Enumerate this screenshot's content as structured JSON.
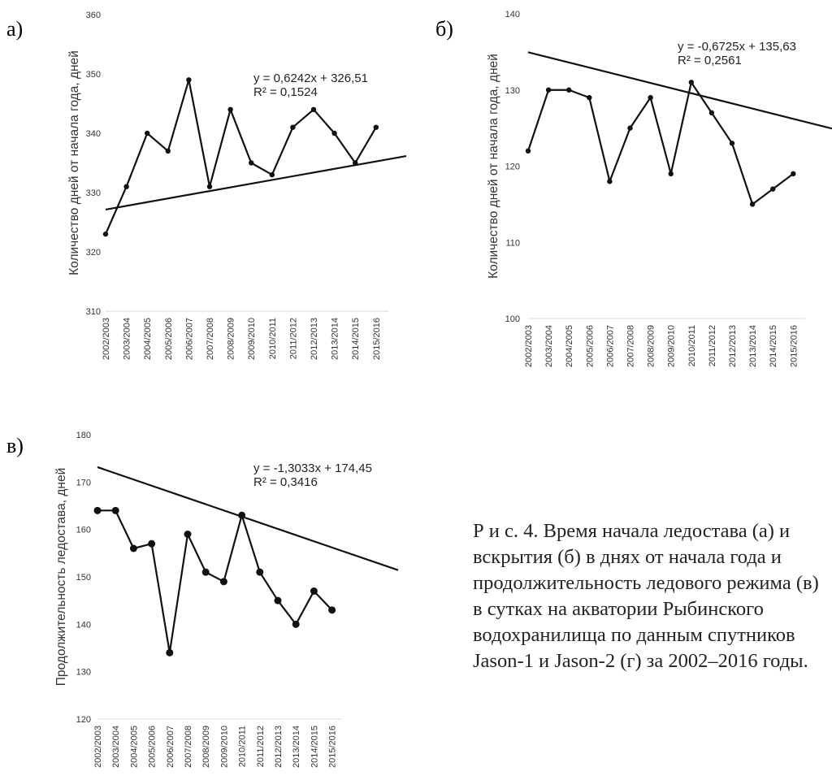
{
  "caption": "Р и с. 4. Время начала ледостава (а) и вскрытия (б) в днях от начала года и продолжительность ледового режима (в) в сутках на акватории Рыбинского водохранилища по данным спутников Jason-1 и Jason-2 (г) за 2002–2016 годы.",
  "chart_data": [
    {
      "type": "line",
      "panel": "а)",
      "ylabel": "Количество дней от начала года, дней",
      "ylim": [
        310,
        360
      ],
      "yticks": [
        310,
        320,
        330,
        340,
        350,
        360
      ],
      "categories": [
        "2002/2003",
        "2003/2004",
        "2004/2005",
        "2005/2006",
        "2006/2007",
        "2007/2008",
        "2008/2009",
        "2009/2010",
        "2010/2011",
        "2011/2012",
        "2012/2013",
        "2013/2014",
        "2014/2015",
        "2015/2016"
      ],
      "values": [
        323,
        331,
        340,
        337,
        349,
        331,
        344,
        335,
        333,
        341,
        344,
        340,
        335,
        341
      ],
      "trendline": {
        "slope": 0.6242,
        "intercept": 326.51,
        "equation": "y = 0,6242x + 326,51",
        "r2": "R² = 0,1524"
      },
      "grid": false
    },
    {
      "type": "line",
      "panel": "б)",
      "ylabel": "Количество дней от начала года, дней",
      "ylim": [
        100,
        140
      ],
      "yticks": [
        100,
        110,
        120,
        130,
        140
      ],
      "categories": [
        "2002/2003",
        "2003/2004",
        "2004/2005",
        "2005/2006",
        "2006/2007",
        "2007/2008",
        "2008/2009",
        "2009/2010",
        "2010/2011",
        "2011/2012",
        "2012/2013",
        "2013/2014",
        "2014/2015",
        "2015/2016"
      ],
      "values": [
        122,
        130,
        130,
        129,
        118,
        125,
        129,
        119,
        131,
        127,
        123,
        115,
        117,
        119
      ],
      "trendline": {
        "slope": -0.6725,
        "intercept": 135.63,
        "equation": "y = -0,6725x + 135,63",
        "r2": "R² = 0,2561"
      },
      "grid": false
    },
    {
      "type": "line",
      "panel": "в)",
      "ylabel": "Продолжительность ледостава, дней",
      "ylim": [
        120,
        180
      ],
      "yticks": [
        120,
        130,
        140,
        150,
        160,
        170,
        180
      ],
      "categories": [
        "2002/2003",
        "2003/2004",
        "2004/2005",
        "2005/2006",
        "2006/2007",
        "2007/2008",
        "2008/2009",
        "2009/2010",
        "2010/2011",
        "2011/2012",
        "2012/2013",
        "2013/2014",
        "2014/2015",
        "2015/2016"
      ],
      "values": [
        164,
        164,
        156,
        157,
        134,
        159,
        151,
        149,
        163,
        151,
        145,
        140,
        147,
        143
      ],
      "trendline": {
        "slope": -1.3033,
        "intercept": 174.45,
        "equation": "y = -1,3033x + 174,45",
        "r2": "R² = 0,3416"
      },
      "grid": false
    }
  ]
}
